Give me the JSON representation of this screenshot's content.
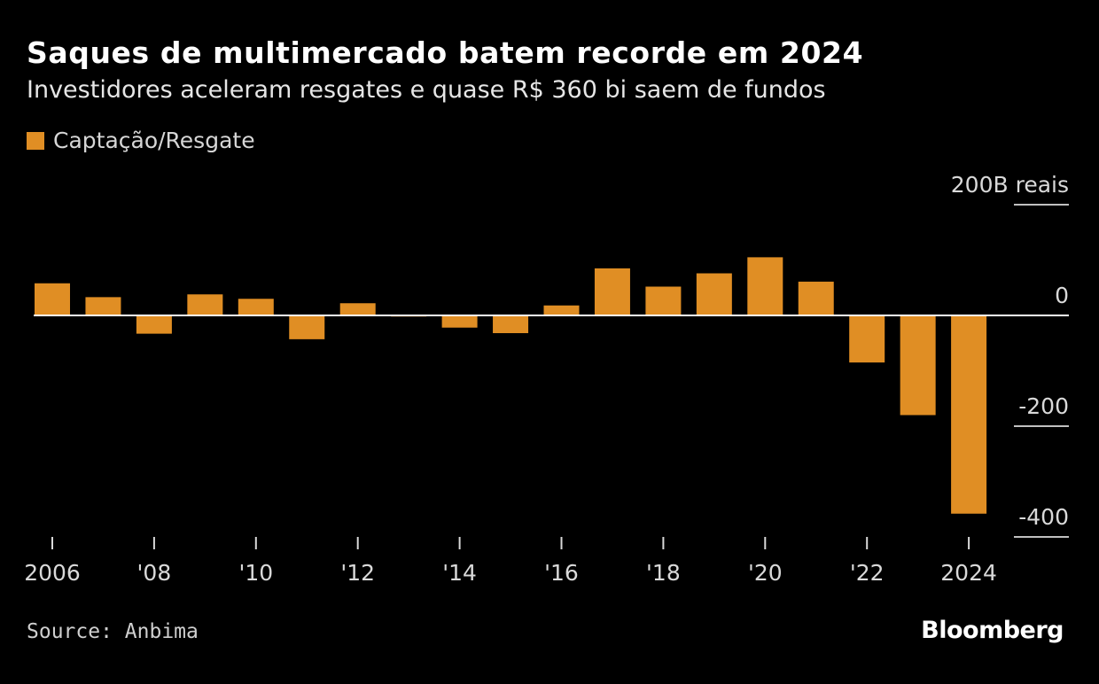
{
  "header": {
    "title": "Saques de multimercado batem recorde em 2024",
    "subtitle": "Investidores aceleram resgates e quase R$ 360 bi saem de fundos"
  },
  "legend": {
    "label": "Captação/Resgate",
    "color": "#e08e24"
  },
  "footer": {
    "source": "Source: Anbima",
    "brand": "Bloomberg"
  },
  "chart_data": {
    "type": "bar",
    "series": [
      {
        "name": "Captação/Resgate",
        "color": "#e08e24",
        "years": [
          2006,
          2007,
          2008,
          2009,
          2010,
          2011,
          2012,
          2013,
          2014,
          2015,
          2016,
          2017,
          2018,
          2019,
          2020,
          2021,
          2022,
          2023,
          2024
        ],
        "values": [
          58,
          33,
          -33,
          38,
          30,
          -43,
          22,
          -2,
          -22,
          -32,
          18,
          85,
          52,
          76,
          105,
          61,
          -85,
          -180,
          -358
        ]
      }
    ],
    "x_ticks": [
      {
        "year": 2006,
        "label": "2006"
      },
      {
        "year": 2008,
        "label": "'08"
      },
      {
        "year": 2010,
        "label": "'10"
      },
      {
        "year": 2012,
        "label": "'12"
      },
      {
        "year": 2014,
        "label": "'14"
      },
      {
        "year": 2016,
        "label": "'16"
      },
      {
        "year": 2018,
        "label": "'18"
      },
      {
        "year": 2020,
        "label": "'20"
      },
      {
        "year": 2022,
        "label": "'22"
      },
      {
        "year": 2024,
        "label": "2024"
      }
    ],
    "y_ticks": [
      {
        "value": 200,
        "label": "200B reais"
      },
      {
        "value": 0,
        "label": "0"
      },
      {
        "value": -200,
        "label": "-200"
      },
      {
        "value": -400,
        "label": "-400"
      }
    ],
    "ylim": [
      -400,
      200
    ],
    "xlabel": "",
    "ylabel": "B reais"
  }
}
